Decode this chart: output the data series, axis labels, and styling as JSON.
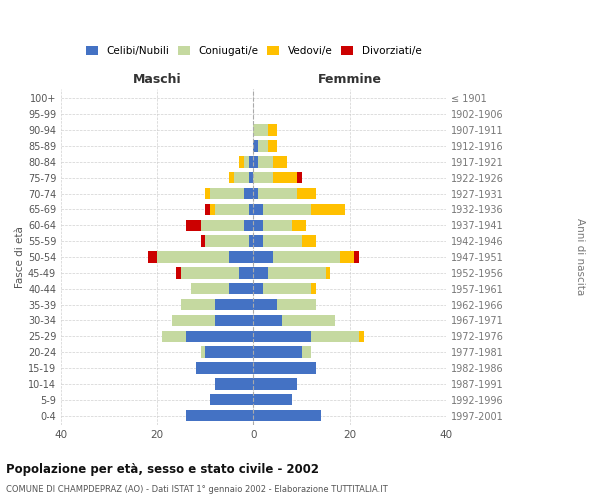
{
  "age_groups": [
    "0-4",
    "5-9",
    "10-14",
    "15-19",
    "20-24",
    "25-29",
    "30-34",
    "35-39",
    "40-44",
    "45-49",
    "50-54",
    "55-59",
    "60-64",
    "65-69",
    "70-74",
    "75-79",
    "80-84",
    "85-89",
    "90-94",
    "95-99",
    "100+"
  ],
  "birth_years": [
    "1997-2001",
    "1992-1996",
    "1987-1991",
    "1982-1986",
    "1977-1981",
    "1972-1976",
    "1967-1971",
    "1962-1966",
    "1957-1961",
    "1952-1956",
    "1947-1951",
    "1942-1946",
    "1937-1941",
    "1932-1936",
    "1927-1931",
    "1922-1926",
    "1917-1921",
    "1912-1916",
    "1907-1911",
    "1902-1906",
    "≤ 1901"
  ],
  "males": {
    "celibi": [
      14,
      9,
      8,
      12,
      10,
      14,
      8,
      8,
      5,
      3,
      5,
      1,
      2,
      1,
      2,
      1,
      1,
      0,
      0,
      0,
      0
    ],
    "coniugati": [
      0,
      0,
      0,
      0,
      1,
      5,
      9,
      7,
      8,
      12,
      15,
      9,
      9,
      7,
      7,
      3,
      1,
      0,
      0,
      0,
      0
    ],
    "vedovi": [
      0,
      0,
      0,
      0,
      0,
      0,
      0,
      0,
      0,
      0,
      0,
      0,
      0,
      1,
      1,
      1,
      1,
      0,
      0,
      0,
      0
    ],
    "divorziati": [
      0,
      0,
      0,
      0,
      0,
      0,
      0,
      0,
      0,
      1,
      2,
      1,
      3,
      1,
      0,
      0,
      0,
      0,
      0,
      0,
      0
    ]
  },
  "females": {
    "nubili": [
      14,
      8,
      9,
      13,
      10,
      12,
      6,
      5,
      2,
      3,
      4,
      2,
      2,
      2,
      1,
      0,
      1,
      1,
      0,
      0,
      0
    ],
    "coniugate": [
      0,
      0,
      0,
      0,
      2,
      10,
      11,
      8,
      10,
      12,
      14,
      8,
      6,
      10,
      8,
      4,
      3,
      2,
      3,
      0,
      0
    ],
    "vedove": [
      0,
      0,
      0,
      0,
      0,
      1,
      0,
      0,
      1,
      1,
      3,
      3,
      3,
      7,
      4,
      5,
      3,
      2,
      2,
      0,
      0
    ],
    "divorziate": [
      0,
      0,
      0,
      0,
      0,
      0,
      0,
      0,
      0,
      0,
      1,
      0,
      0,
      0,
      0,
      1,
      0,
      0,
      0,
      0,
      0
    ]
  },
  "colors": {
    "celibi": "#4472c4",
    "coniugati": "#c5d9a0",
    "vedovi": "#ffc000",
    "divorziati": "#cc0000"
  },
  "xlim": 40,
  "title": "Popolazione per età, sesso e stato civile - 2002",
  "subtitle": "COMUNE DI CHAMPDEPRAZ (AO) - Dati ISTAT 1° gennaio 2002 - Elaborazione TUTTITALIA.IT",
  "ylabel_left": "Fasce di età",
  "ylabel_right": "Anni di nascita",
  "xlabel_left": "Maschi",
  "xlabel_right": "Femmine"
}
